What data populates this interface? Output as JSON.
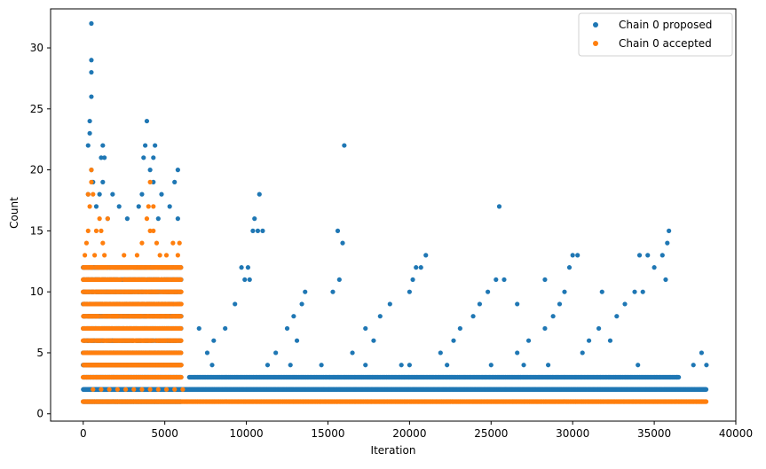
{
  "chart_data": {
    "type": "scatter",
    "title": "",
    "xlabel": "Iteration",
    "ylabel": "Count",
    "xlim": [
      -2000,
      40000
    ],
    "ylim": [
      -0.6,
      33.2
    ],
    "x_ticks": [
      0,
      5000,
      10000,
      15000,
      20000,
      25000,
      30000,
      35000,
      40000
    ],
    "x_tick_labels": [
      "0",
      "5000",
      "10000",
      "15000",
      "20000",
      "25000",
      "30000",
      "35000",
      "40000"
    ],
    "y_ticks": [
      0,
      5,
      10,
      15,
      20,
      25,
      30
    ],
    "y_tick_labels": [
      "0",
      "5",
      "10",
      "15",
      "20",
      "25",
      "30"
    ],
    "grid": false,
    "legend_position": "top-right",
    "series": [
      {
        "name": "Chain 0 proposed",
        "color": "#1f77b4",
        "dense_bands": [
          {
            "x_range": [
              0,
              6000
            ],
            "y_min": 1,
            "y_max": 12
          },
          {
            "x_range": [
              6000,
              38200
            ],
            "y_min": 2,
            "y_max": 2
          },
          {
            "x_range": [
              6500,
              36500
            ],
            "y_min": 3,
            "y_max": 3
          }
        ],
        "points": [
          [
            500,
            32
          ],
          [
            500,
            29
          ],
          [
            500,
            28
          ],
          [
            500,
            26
          ],
          [
            400,
            24
          ],
          [
            400,
            23
          ],
          [
            300,
            22
          ],
          [
            1200,
            22
          ],
          [
            3900,
            24
          ],
          [
            4400,
            22
          ],
          [
            3800,
            22
          ],
          [
            1100,
            21
          ],
          [
            1300,
            21
          ],
          [
            3700,
            21
          ],
          [
            4300,
            21
          ],
          [
            5800,
            20
          ],
          [
            500,
            20
          ],
          [
            4100,
            20
          ],
          [
            600,
            19
          ],
          [
            1200,
            19
          ],
          [
            4300,
            19
          ],
          [
            5600,
            19
          ],
          [
            300,
            18
          ],
          [
            1000,
            18
          ],
          [
            1800,
            18
          ],
          [
            3600,
            18
          ],
          [
            4800,
            18
          ],
          [
            10800,
            18
          ],
          [
            800,
            17
          ],
          [
            2200,
            17
          ],
          [
            3400,
            17
          ],
          [
            5300,
            17
          ],
          [
            1500,
            16
          ],
          [
            10500,
            16
          ],
          [
            2700,
            16
          ],
          [
            4600,
            16
          ],
          [
            5800,
            16
          ],
          [
            10400,
            15
          ],
          [
            11000,
            15
          ],
          [
            10700,
            15
          ],
          [
            15600,
            15
          ],
          [
            15900,
            14
          ],
          [
            16000,
            22
          ],
          [
            25500,
            17
          ],
          [
            35900,
            15
          ],
          [
            35800,
            14
          ],
          [
            35500,
            13
          ],
          [
            34100,
            13
          ],
          [
            34600,
            13
          ],
          [
            35000,
            12
          ],
          [
            30000,
            13
          ],
          [
            30300,
            13
          ],
          [
            29800,
            12
          ],
          [
            21000,
            13
          ],
          [
            20700,
            12
          ],
          [
            20400,
            12
          ],
          [
            25800,
            11
          ],
          [
            25300,
            11
          ],
          [
            28300,
            11
          ],
          [
            20200,
            11
          ],
          [
            15700,
            11
          ],
          [
            35700,
            11
          ],
          [
            9700,
            12
          ],
          [
            10100,
            12
          ],
          [
            9900,
            11
          ],
          [
            10200,
            11
          ],
          [
            15300,
            10
          ],
          [
            13600,
            10
          ],
          [
            20000,
            10
          ],
          [
            24800,
            10
          ],
          [
            29500,
            10
          ],
          [
            31800,
            10
          ],
          [
            33800,
            10
          ],
          [
            34300,
            10
          ],
          [
            18800,
            9
          ],
          [
            24300,
            9
          ],
          [
            26600,
            9
          ],
          [
            29200,
            9
          ],
          [
            33200,
            9
          ],
          [
            13400,
            9
          ],
          [
            9300,
            9
          ],
          [
            18200,
            8
          ],
          [
            23900,
            8
          ],
          [
            28800,
            8
          ],
          [
            32700,
            8
          ],
          [
            12900,
            8
          ],
          [
            7100,
            7
          ],
          [
            8700,
            7
          ],
          [
            12500,
            7
          ],
          [
            17300,
            7
          ],
          [
            23100,
            7
          ],
          [
            28300,
            7
          ],
          [
            31600,
            7
          ],
          [
            8000,
            6
          ],
          [
            13100,
            6
          ],
          [
            17800,
            6
          ],
          [
            22700,
            6
          ],
          [
            27300,
            6
          ],
          [
            31000,
            6
          ],
          [
            32300,
            6
          ],
          [
            7600,
            5
          ],
          [
            11800,
            5
          ],
          [
            16500,
            5
          ],
          [
            21900,
            5
          ],
          [
            26600,
            5
          ],
          [
            30600,
            5
          ],
          [
            37900,
            5
          ],
          [
            17300,
            4
          ],
          [
            20000,
            4
          ],
          [
            27000,
            4
          ],
          [
            34000,
            4
          ],
          [
            37400,
            4
          ],
          [
            38200,
            4
          ],
          [
            7900,
            4
          ],
          [
            11300,
            4
          ],
          [
            12700,
            4
          ],
          [
            14600,
            4
          ],
          [
            19500,
            4
          ],
          [
            22300,
            4
          ],
          [
            25000,
            4
          ],
          [
            28500,
            4
          ]
        ]
      },
      {
        "name": "Chain 0 accepted",
        "color": "#ff7f0e",
        "dense_bands": [
          {
            "x_range": [
              0,
              6000
            ],
            "y_min": 3,
            "y_max": 12
          },
          {
            "x_range": [
              0,
              38200
            ],
            "y_min": 1,
            "y_max": 1
          }
        ],
        "points": [
          [
            500,
            20
          ],
          [
            500,
            19
          ],
          [
            600,
            18
          ],
          [
            300,
            18
          ],
          [
            4100,
            19
          ],
          [
            4000,
            17
          ],
          [
            4300,
            17
          ],
          [
            400,
            17
          ],
          [
            1000,
            16
          ],
          [
            1500,
            16
          ],
          [
            3900,
            16
          ],
          [
            4100,
            15
          ],
          [
            4300,
            15
          ],
          [
            300,
            15
          ],
          [
            800,
            15
          ],
          [
            1100,
            15
          ],
          [
            3600,
            14
          ],
          [
            200,
            14
          ],
          [
            1200,
            14
          ],
          [
            4500,
            14
          ],
          [
            5500,
            14
          ],
          [
            5900,
            14
          ],
          [
            100,
            13
          ],
          [
            700,
            13
          ],
          [
            1300,
            13
          ],
          [
            2500,
            13
          ],
          [
            3300,
            13
          ],
          [
            4700,
            13
          ],
          [
            5100,
            13
          ],
          [
            5800,
            13
          ],
          [
            600,
            2
          ],
          [
            1100,
            2
          ],
          [
            1600,
            2
          ],
          [
            2100,
            2
          ],
          [
            2600,
            2
          ],
          [
            3100,
            2
          ],
          [
            3600,
            2
          ],
          [
            4100,
            2
          ],
          [
            4600,
            2
          ],
          [
            5100,
            2
          ],
          [
            5600,
            2
          ],
          [
            6100,
            2
          ],
          [
            900,
            1
          ],
          [
            2100,
            1
          ],
          [
            3400,
            1
          ],
          [
            4600,
            1
          ]
        ]
      }
    ]
  }
}
